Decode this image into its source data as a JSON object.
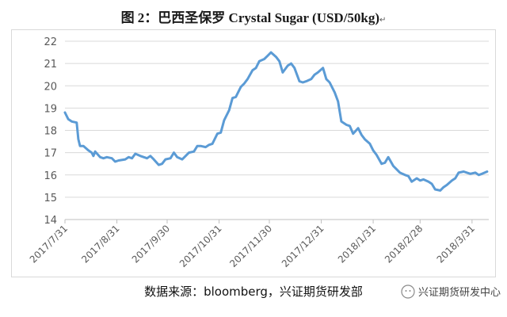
{
  "title": "图 2：巴西圣保罗 Crystal Sugar (USD/50kg)",
  "title_mark": "↵",
  "source": "数据来源：bloomberg，兴证期货研发部",
  "watermark": "兴证期货研发中心",
  "chart_data": {
    "type": "line",
    "title": "图 2：巴西圣保罗 Crystal Sugar (USD/50kg)",
    "xlabel": "",
    "ylabel": "",
    "ylim": [
      14,
      22
    ],
    "yticks": [
      14,
      15,
      16,
      17,
      18,
      19,
      20,
      21,
      22
    ],
    "xticks": [
      "2017/7/31",
      "2017/8/31",
      "2017/9/30",
      "2017/10/31",
      "2017/11/30",
      "2017/12/31",
      "2018/1/31",
      "2018/2/28",
      "2018/3/31"
    ],
    "xrange": [
      "2017-07-31",
      "2018-04-10"
    ],
    "grid": {
      "horizontal": true,
      "vertical": false
    },
    "legend": "none",
    "line_color": "#5b9bd5",
    "series": [
      {
        "name": "",
        "points": [
          [
            "2017-07-31",
            18.8
          ],
          [
            "2017-08-02",
            18.5
          ],
          [
            "2017-08-04",
            18.4
          ],
          [
            "2017-08-07",
            18.35
          ],
          [
            "2017-08-08",
            17.6
          ],
          [
            "2017-08-09",
            17.3
          ],
          [
            "2017-08-11",
            17.3
          ],
          [
            "2017-08-14",
            17.1
          ],
          [
            "2017-08-16",
            17.0
          ],
          [
            "2017-08-17",
            16.85
          ],
          [
            "2017-08-18",
            17.05
          ],
          [
            "2017-08-21",
            16.8
          ],
          [
            "2017-08-23",
            16.75
          ],
          [
            "2017-08-25",
            16.8
          ],
          [
            "2017-08-28",
            16.75
          ],
          [
            "2017-08-30",
            16.6
          ],
          [
            "2017-09-01",
            16.65
          ],
          [
            "2017-09-05",
            16.7
          ],
          [
            "2017-09-07",
            16.8
          ],
          [
            "2017-09-09",
            16.75
          ],
          [
            "2017-09-11",
            16.95
          ],
          [
            "2017-09-14",
            16.85
          ],
          [
            "2017-09-18",
            16.75
          ],
          [
            "2017-09-20",
            16.85
          ],
          [
            "2017-09-22",
            16.7
          ],
          [
            "2017-09-25",
            16.45
          ],
          [
            "2017-09-27",
            16.5
          ],
          [
            "2017-09-29",
            16.7
          ],
          [
            "2017-10-02",
            16.75
          ],
          [
            "2017-10-04",
            17.0
          ],
          [
            "2017-10-06",
            16.8
          ],
          [
            "2017-10-09",
            16.7
          ],
          [
            "2017-10-11",
            16.85
          ],
          [
            "2017-10-13",
            17.0
          ],
          [
            "2017-10-16",
            17.05
          ],
          [
            "2017-10-18",
            17.3
          ],
          [
            "2017-10-20",
            17.3
          ],
          [
            "2017-10-23",
            17.25
          ],
          [
            "2017-10-25",
            17.35
          ],
          [
            "2017-10-27",
            17.4
          ],
          [
            "2017-10-30",
            17.85
          ],
          [
            "2017-11-01",
            17.9
          ],
          [
            "2017-11-03",
            18.45
          ],
          [
            "2017-11-06",
            18.9
          ],
          [
            "2017-11-08",
            19.45
          ],
          [
            "2017-11-10",
            19.5
          ],
          [
            "2017-11-13",
            19.95
          ],
          [
            "2017-11-15",
            20.1
          ],
          [
            "2017-11-17",
            20.3
          ],
          [
            "2017-11-20",
            20.7
          ],
          [
            "2017-11-22",
            20.8
          ],
          [
            "2017-11-24",
            21.1
          ],
          [
            "2017-11-27",
            21.2
          ],
          [
            "2017-11-29",
            21.35
          ],
          [
            "2017-12-01",
            21.5
          ],
          [
            "2017-12-04",
            21.3
          ],
          [
            "2017-12-06",
            21.1
          ],
          [
            "2017-12-08",
            20.6
          ],
          [
            "2017-12-11",
            20.9
          ],
          [
            "2017-12-13",
            21.0
          ],
          [
            "2017-12-15",
            20.8
          ],
          [
            "2017-12-18",
            20.2
          ],
          [
            "2017-12-20",
            20.15
          ],
          [
            "2017-12-22",
            20.2
          ],
          [
            "2017-12-25",
            20.3
          ],
          [
            "2017-12-27",
            20.5
          ],
          [
            "2017-12-29",
            20.6
          ],
          [
            "2018-01-01",
            20.8
          ],
          [
            "2018-01-03",
            20.3
          ],
          [
            "2018-01-05",
            20.15
          ],
          [
            "2018-01-08",
            19.7
          ],
          [
            "2018-01-10",
            19.3
          ],
          [
            "2018-01-12",
            18.4
          ],
          [
            "2018-01-15",
            18.25
          ],
          [
            "2018-01-17",
            18.2
          ],
          [
            "2018-01-19",
            17.85
          ],
          [
            "2018-01-22",
            18.1
          ],
          [
            "2018-01-24",
            17.8
          ],
          [
            "2018-01-26",
            17.6
          ],
          [
            "2018-01-29",
            17.4
          ],
          [
            "2018-01-31",
            17.1
          ],
          [
            "2018-02-02",
            16.9
          ],
          [
            "2018-02-05",
            16.5
          ],
          [
            "2018-02-07",
            16.55
          ],
          [
            "2018-02-09",
            16.8
          ],
          [
            "2018-02-12",
            16.4
          ],
          [
            "2018-02-14",
            16.25
          ],
          [
            "2018-02-16",
            16.1
          ],
          [
            "2018-02-19",
            16.0
          ],
          [
            "2018-02-21",
            15.95
          ],
          [
            "2018-02-23",
            15.7
          ],
          [
            "2018-02-26",
            15.85
          ],
          [
            "2018-02-28",
            15.75
          ],
          [
            "2018-03-02",
            15.8
          ],
          [
            "2018-03-05",
            15.7
          ],
          [
            "2018-03-07",
            15.6
          ],
          [
            "2018-03-09",
            15.35
          ],
          [
            "2018-03-12",
            15.3
          ],
          [
            "2018-03-14",
            15.45
          ],
          [
            "2018-03-16",
            15.55
          ],
          [
            "2018-03-19",
            15.75
          ],
          [
            "2018-03-21",
            15.85
          ],
          [
            "2018-03-23",
            16.1
          ],
          [
            "2018-03-26",
            16.15
          ],
          [
            "2018-03-28",
            16.1
          ],
          [
            "2018-03-30",
            16.05
          ],
          [
            "2018-04-02",
            16.1
          ],
          [
            "2018-04-04",
            16.0
          ],
          [
            "2018-04-06",
            16.05
          ],
          [
            "2018-04-09",
            16.15
          ]
        ]
      }
    ]
  }
}
